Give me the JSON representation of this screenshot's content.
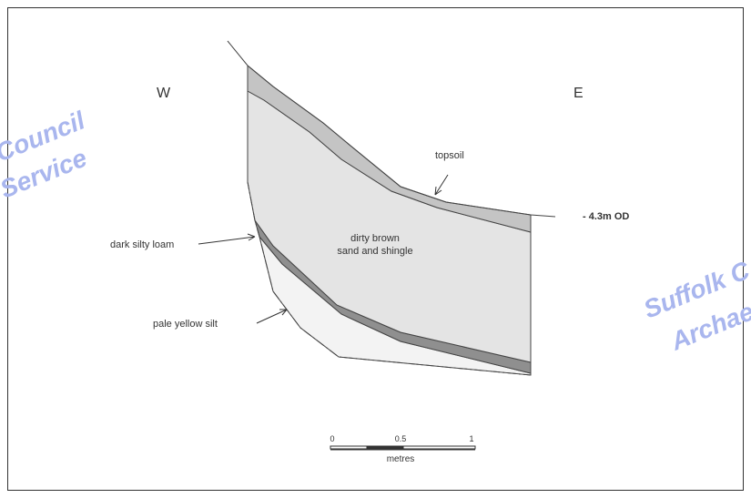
{
  "labels": {
    "west": "W",
    "east": "E",
    "topsoil": "topsoil",
    "sand_line1": "dirty brown",
    "sand_line2": "sand and shingle",
    "loam": "dark silty loam",
    "silt": "pale yellow silt",
    "datum": "- 4.3m OD"
  },
  "scale_bar": {
    "ticks": [
      "0",
      "0.5",
      "1"
    ],
    "unit": "metres"
  },
  "watermarks": [
    "Council",
    "Service",
    "Suffolk C",
    "Archae"
  ]
}
